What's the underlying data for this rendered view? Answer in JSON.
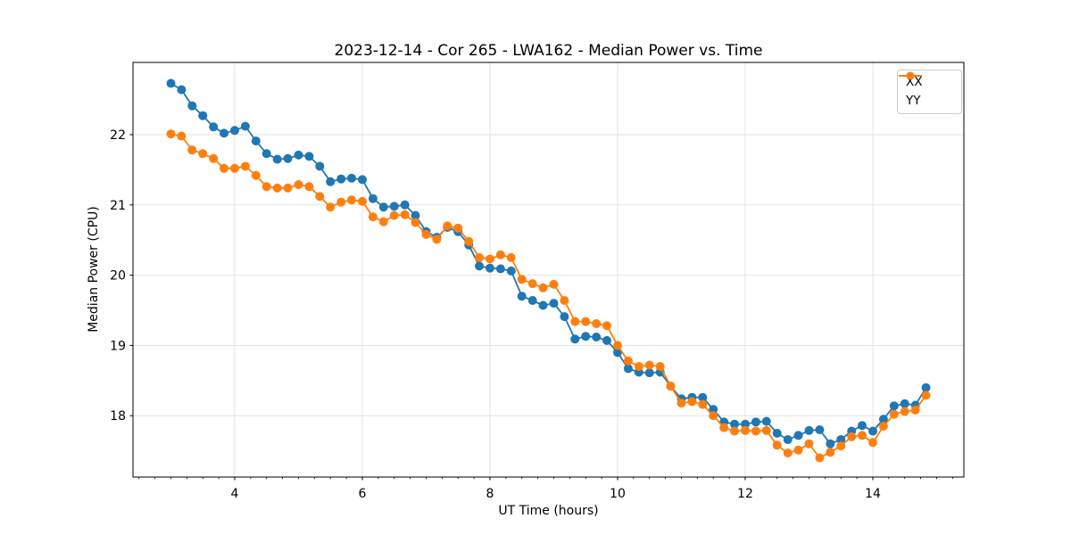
{
  "figure": {
    "title": "2023-12-14 - Cor 265 - LWA162 - Median Power vs. Time"
  },
  "chart_data": {
    "type": "line",
    "title": "2023-12-14 - Cor 265 - LWA162 - Median Power vs. Time",
    "xlabel": "UT Time (hours)",
    "ylabel": "Median Power (CPU)",
    "legend_position": "upper right",
    "grid": true,
    "marker": "o",
    "background_color": "#ffffff",
    "grid_color": "#e3e3e3",
    "spine_color": "#000000",
    "text_color": "#000000",
    "xlim": [
      2.406,
      15.427
    ],
    "ylim": [
      17.127,
      23.028
    ],
    "xticks": [
      4,
      6,
      8,
      10,
      12,
      14
    ],
    "yticks": [
      18,
      19,
      20,
      21,
      22
    ],
    "x_minor_tick_step": 0.25,
    "x": [
      3.0,
      3.167,
      3.333,
      3.5,
      3.667,
      3.833,
      4.0,
      4.167,
      4.333,
      4.5,
      4.667,
      4.833,
      5.0,
      5.167,
      5.333,
      5.5,
      5.667,
      5.833,
      6.0,
      6.167,
      6.333,
      6.5,
      6.667,
      6.833,
      7.0,
      7.167,
      7.333,
      7.5,
      7.667,
      7.833,
      8.0,
      8.167,
      8.333,
      8.5,
      8.667,
      8.833,
      9.0,
      9.167,
      9.333,
      9.5,
      9.667,
      9.833,
      10.0,
      10.167,
      10.333,
      10.5,
      10.667,
      10.833,
      11.0,
      11.167,
      11.333,
      11.5,
      11.667,
      11.833,
      12.0,
      12.167,
      12.333,
      12.5,
      12.667,
      12.833,
      13.0,
      13.167,
      13.333,
      13.5,
      13.667,
      13.833,
      14.0,
      14.167,
      14.333,
      14.5,
      14.667,
      14.833
    ],
    "series": [
      {
        "name": "XX",
        "color": "#1f77b4",
        "values": [
          22.73,
          22.64,
          22.41,
          22.27,
          22.11,
          22.02,
          22.06,
          22.12,
          21.91,
          21.73,
          21.65,
          21.66,
          21.71,
          21.69,
          21.55,
          21.33,
          21.37,
          21.38,
          21.36,
          21.09,
          20.97,
          20.98,
          21.0,
          20.85,
          20.62,
          20.54,
          20.68,
          20.62,
          20.43,
          20.13,
          20.1,
          20.09,
          20.06,
          19.7,
          19.64,
          19.57,
          19.6,
          19.41,
          19.09,
          19.13,
          19.12,
          19.07,
          18.9,
          18.67,
          18.62,
          18.61,
          18.62,
          18.42,
          18.24,
          18.26,
          18.26,
          18.09,
          17.91,
          17.88,
          17.88,
          17.91,
          17.92,
          17.75,
          17.66,
          17.72,
          17.79,
          17.8,
          17.6,
          17.66,
          17.78,
          17.86,
          17.78,
          17.95,
          18.14,
          18.17,
          18.15,
          18.4
        ]
      },
      {
        "name": "YY",
        "color": "#ff7f0e",
        "values": [
          22.01,
          21.98,
          21.78,
          21.73,
          21.66,
          21.52,
          21.52,
          21.55,
          21.42,
          21.26,
          21.24,
          21.24,
          21.29,
          21.26,
          21.12,
          20.97,
          21.04,
          21.07,
          21.05,
          20.83,
          20.76,
          20.85,
          20.86,
          20.75,
          20.58,
          20.51,
          20.7,
          20.67,
          20.48,
          20.25,
          20.23,
          20.29,
          20.25,
          19.94,
          19.88,
          19.82,
          19.87,
          19.64,
          19.34,
          19.34,
          19.31,
          19.28,
          19.0,
          18.78,
          18.7,
          18.72,
          18.7,
          18.42,
          18.18,
          18.2,
          18.16,
          18.0,
          17.83,
          17.78,
          17.79,
          17.78,
          17.79,
          17.58,
          17.47,
          17.51,
          17.6,
          17.4,
          17.48,
          17.57,
          17.7,
          17.72,
          17.62,
          17.85,
          18.02,
          18.06,
          18.08,
          18.29
        ]
      }
    ]
  }
}
